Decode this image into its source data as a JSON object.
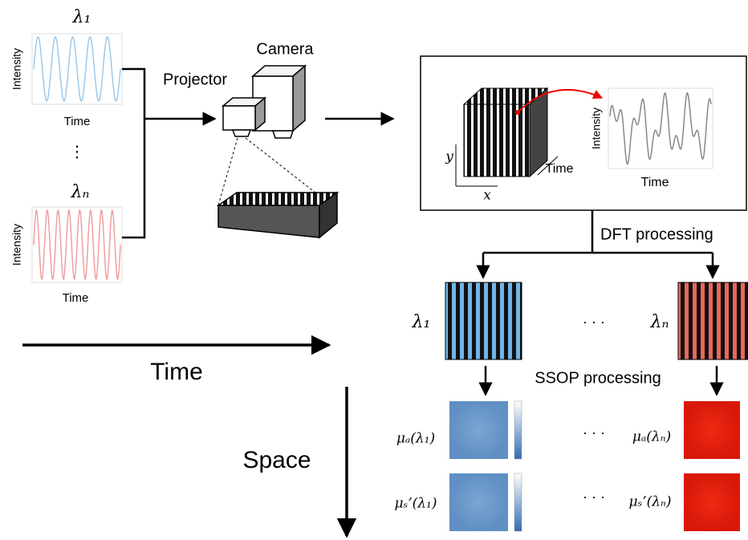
{
  "sources": [
    {
      "wavelength": "λ₁",
      "y_label": "Intensity",
      "x_label": "Time"
    },
    {
      "wavelength": "λₙ",
      "y_label": "Intensity",
      "x_label": "Time"
    }
  ],
  "source_ellipsis": "⋮",
  "projector": "Projector",
  "camera": "Camera",
  "capture": {
    "y_axis": "y",
    "x_axis": "x",
    "depth_axis": "Time",
    "plot_y_label": "Intensity",
    "plot_x_label": "Time"
  },
  "dft_label": "DFT processing",
  "dft_outputs": {
    "left": "λ₁",
    "ellipsis": "· · ·",
    "right": "λₙ"
  },
  "ssop_label": "SSOP processing",
  "maps": {
    "rows": [
      [
        "μₐ(λ₁)",
        "· · ·",
        "μₐ(λₙ)"
      ],
      [
        "μₛ’(λ₁)",
        "· · ·",
        "μₛ’(λₙ)"
      ]
    ]
  },
  "time_axis": "Time",
  "space_axis": "Space"
}
